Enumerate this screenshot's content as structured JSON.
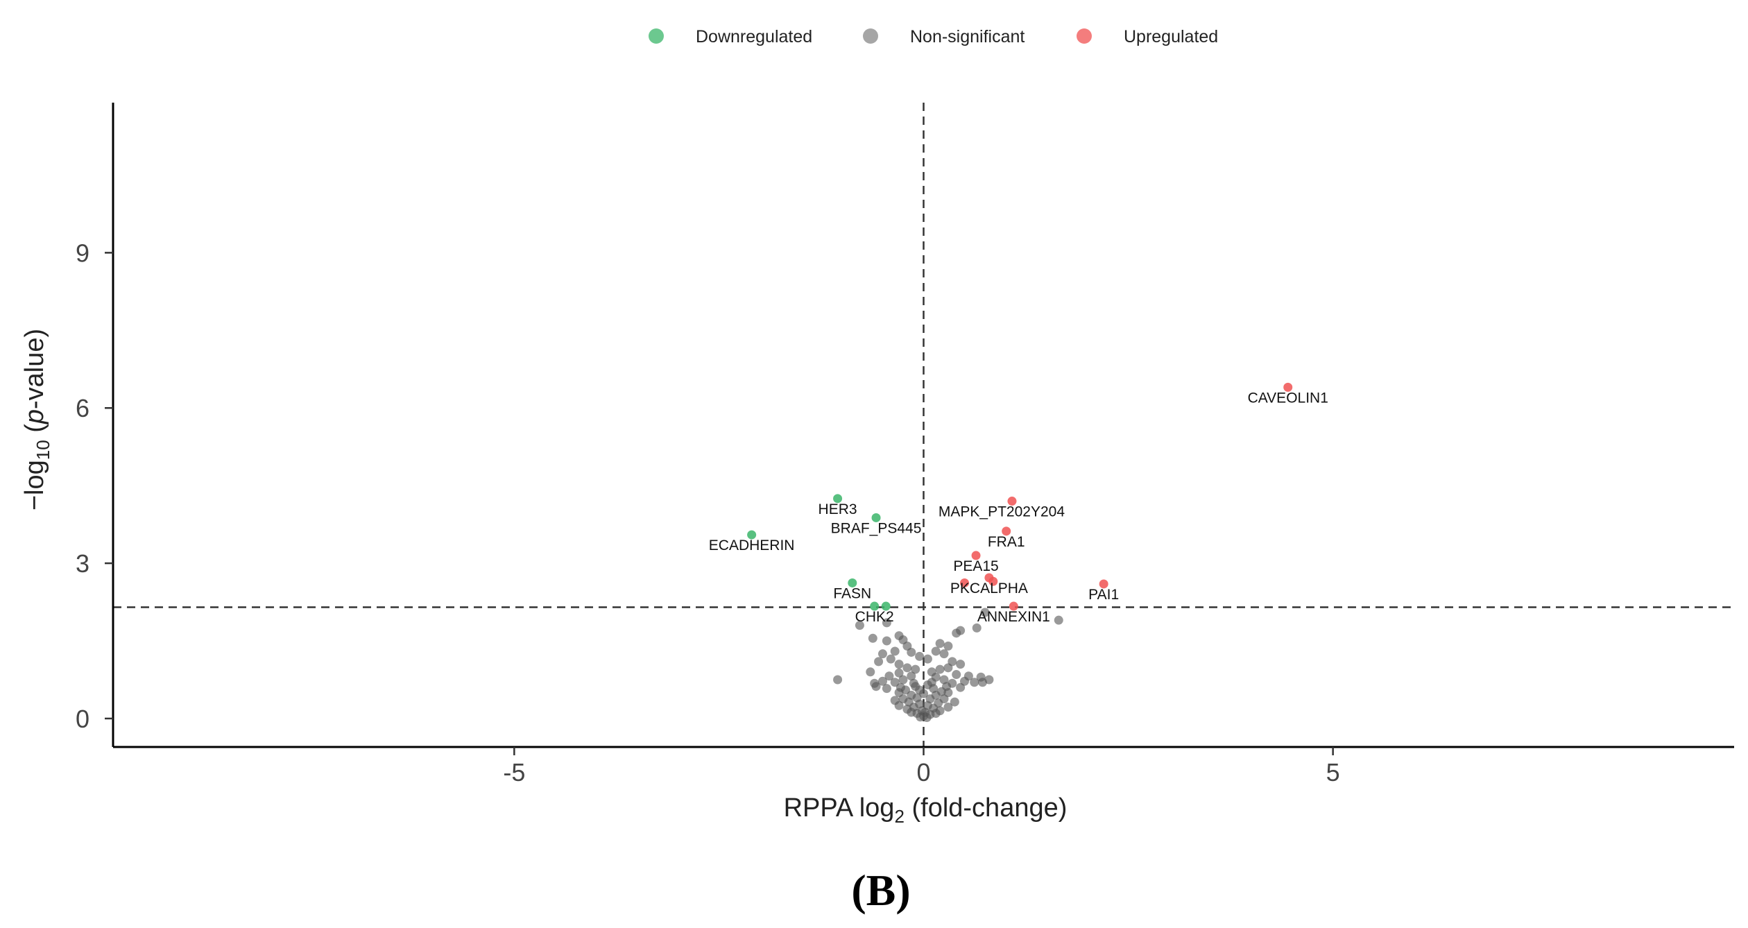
{
  "chart_data": {
    "type": "scatter",
    "title": "",
    "xlabel_main": "RPPA log",
    "xlabel_sub": "2",
    "xlabel_rest": " (fold-change)",
    "ylabel_pre": "−log",
    "ylabel_sub": "10",
    "ylabel_open": " (",
    "ylabel_italic": "p",
    "ylabel_close": "-value)",
    "xlim": [
      -9.9,
      9.9
    ],
    "ylim": [
      -0.55,
      11.9
    ],
    "x_ticks": [
      -5,
      0,
      5
    ],
    "x_tick_labels": [
      "-5",
      "0",
      "5"
    ],
    "y_ticks": [
      0,
      3,
      6,
      9
    ],
    "y_tick_labels": [
      "0",
      "3",
      "6",
      "9"
    ],
    "fc_threshold": 0,
    "p_threshold": 2.15,
    "panel_label": "(B)",
    "legend": {
      "placement": "top-center",
      "entries": [
        {
          "name": "Downregulated",
          "color": "#3bb56a"
        },
        {
          "name": "Non-significant",
          "color": "#888888"
        },
        {
          "name": "Upregulated",
          "color": "#f05252"
        }
      ]
    },
    "series": [
      {
        "name": "Downregulated",
        "color": "#3bb56a",
        "points": [
          {
            "x": -1.05,
            "y": 4.25,
            "label": "HER3"
          },
          {
            "x": -0.58,
            "y": 3.88,
            "label": "BRAF_PS445"
          },
          {
            "x": -2.1,
            "y": 3.55,
            "label": "ECADHERIN"
          },
          {
            "x": -0.87,
            "y": 2.62,
            "label": "FASN"
          },
          {
            "x": -0.6,
            "y": 2.17,
            "label": "CHK2"
          },
          {
            "x": -0.46,
            "y": 2.17,
            "label": ""
          }
        ]
      },
      {
        "name": "Upregulated",
        "color": "#f05252",
        "points": [
          {
            "x": 4.45,
            "y": 6.4,
            "label": "CAVEOLIN1"
          },
          {
            "x": 1.08,
            "y": 4.2,
            "label": "MAPK_PT202Y204"
          },
          {
            "x": 1.01,
            "y": 3.62,
            "label": "FRA1"
          },
          {
            "x": 0.64,
            "y": 3.15,
            "label": "PEA15"
          },
          {
            "x": 0.8,
            "y": 2.72,
            "label": "PKCALPHA"
          },
          {
            "x": 0.85,
            "y": 2.65,
            "label": ""
          },
          {
            "x": 0.5,
            "y": 2.62,
            "label": ""
          },
          {
            "x": 2.2,
            "y": 2.6,
            "label": "PAI1"
          },
          {
            "x": 1.1,
            "y": 2.17,
            "label": "ANNEXIN1"
          }
        ]
      },
      {
        "name": "Non-significant",
        "color": "#555555",
        "points": [
          {
            "x": 0.75,
            "y": 2.05
          },
          {
            "x": 1.65,
            "y": 1.9
          },
          {
            "x": 0.65,
            "y": 1.75
          },
          {
            "x": -0.45,
            "y": 1.85
          },
          {
            "x": -0.78,
            "y": 1.8
          },
          {
            "x": 0.45,
            "y": 1.7
          },
          {
            "x": 0.4,
            "y": 1.65
          },
          {
            "x": -0.3,
            "y": 1.6
          },
          {
            "x": -0.45,
            "y": 1.5
          },
          {
            "x": -0.62,
            "y": 1.55
          },
          {
            "x": -0.25,
            "y": 1.52
          },
          {
            "x": -0.2,
            "y": 1.4
          },
          {
            "x": 0.2,
            "y": 1.45
          },
          {
            "x": 0.3,
            "y": 1.4
          },
          {
            "x": 0.15,
            "y": 1.3
          },
          {
            "x": 0.25,
            "y": 1.25
          },
          {
            "x": -0.35,
            "y": 1.3
          },
          {
            "x": -0.5,
            "y": 1.25
          },
          {
            "x": -0.15,
            "y": 1.28
          },
          {
            "x": -0.05,
            "y": 1.2
          },
          {
            "x": 0.05,
            "y": 1.15
          },
          {
            "x": -0.4,
            "y": 1.15
          },
          {
            "x": 0.35,
            "y": 1.1
          },
          {
            "x": -0.55,
            "y": 1.1
          },
          {
            "x": 0.45,
            "y": 1.05
          },
          {
            "x": -0.3,
            "y": 1.05
          },
          {
            "x": -0.2,
            "y": 0.98
          },
          {
            "x": 0.3,
            "y": 0.98
          },
          {
            "x": 0.2,
            "y": 0.95
          },
          {
            "x": -0.1,
            "y": 0.95
          },
          {
            "x": 0.1,
            "y": 0.9
          },
          {
            "x": -0.3,
            "y": 0.88
          },
          {
            "x": 0.4,
            "y": 0.85
          },
          {
            "x": -0.42,
            "y": 0.82
          },
          {
            "x": -0.65,
            "y": 0.9
          },
          {
            "x": 0.55,
            "y": 0.82
          },
          {
            "x": 0.7,
            "y": 0.8
          },
          {
            "x": -0.15,
            "y": 0.82
          },
          {
            "x": 0.15,
            "y": 0.8
          },
          {
            "x": -0.25,
            "y": 0.75
          },
          {
            "x": 0.25,
            "y": 0.75
          },
          {
            "x": -0.5,
            "y": 0.72
          },
          {
            "x": 0.5,
            "y": 0.72
          },
          {
            "x": 0.62,
            "y": 0.7
          },
          {
            "x": -1.05,
            "y": 0.75
          },
          {
            "x": -0.6,
            "y": 0.68
          },
          {
            "x": -0.35,
            "y": 0.7
          },
          {
            "x": 0.35,
            "y": 0.68
          },
          {
            "x": -0.58,
            "y": 0.62
          },
          {
            "x": 0.05,
            "y": 0.65
          },
          {
            "x": -0.1,
            "y": 0.62
          },
          {
            "x": 0.8,
            "y": 0.75
          },
          {
            "x": 0.72,
            "y": 0.7
          },
          {
            "x": -0.05,
            "y": 0.55
          },
          {
            "x": 0.12,
            "y": 0.58
          },
          {
            "x": -0.22,
            "y": 0.55
          },
          {
            "x": 0.22,
            "y": 0.52
          },
          {
            "x": -0.3,
            "y": 0.5
          },
          {
            "x": 0.3,
            "y": 0.5
          },
          {
            "x": -0.15,
            "y": 0.45
          },
          {
            "x": 0.15,
            "y": 0.45
          },
          {
            "x": 0.0,
            "y": 0.48
          },
          {
            "x": -0.08,
            "y": 0.4
          },
          {
            "x": 0.08,
            "y": 0.38
          },
          {
            "x": -0.25,
            "y": 0.38
          },
          {
            "x": 0.25,
            "y": 0.38
          },
          {
            "x": -0.18,
            "y": 0.32
          },
          {
            "x": 0.18,
            "y": 0.3
          },
          {
            "x": -0.05,
            "y": 0.28
          },
          {
            "x": 0.05,
            "y": 0.25
          },
          {
            "x": -0.12,
            "y": 0.22
          },
          {
            "x": 0.12,
            "y": 0.2
          },
          {
            "x": -0.3,
            "y": 0.25
          },
          {
            "x": 0.3,
            "y": 0.22
          },
          {
            "x": -0.02,
            "y": 0.15
          },
          {
            "x": 0.02,
            "y": 0.12
          },
          {
            "x": -0.08,
            "y": 0.1
          },
          {
            "x": 0.08,
            "y": 0.08
          },
          {
            "x": -0.15,
            "y": 0.12
          },
          {
            "x": 0.15,
            "y": 0.1
          },
          {
            "x": 0.0,
            "y": 0.05
          },
          {
            "x": -0.04,
            "y": 0.03
          },
          {
            "x": 0.04,
            "y": 0.02
          },
          {
            "x": -0.2,
            "y": 0.18
          },
          {
            "x": 0.2,
            "y": 0.15
          },
          {
            "x": -0.35,
            "y": 0.35
          },
          {
            "x": 0.38,
            "y": 0.32
          },
          {
            "x": 0.1,
            "y": 0.7
          },
          {
            "x": -0.12,
            "y": 0.68
          },
          {
            "x": 0.45,
            "y": 0.6
          },
          {
            "x": -0.45,
            "y": 0.58
          },
          {
            "x": 0.28,
            "y": 0.62
          },
          {
            "x": -0.28,
            "y": 0.6
          }
        ]
      }
    ]
  }
}
